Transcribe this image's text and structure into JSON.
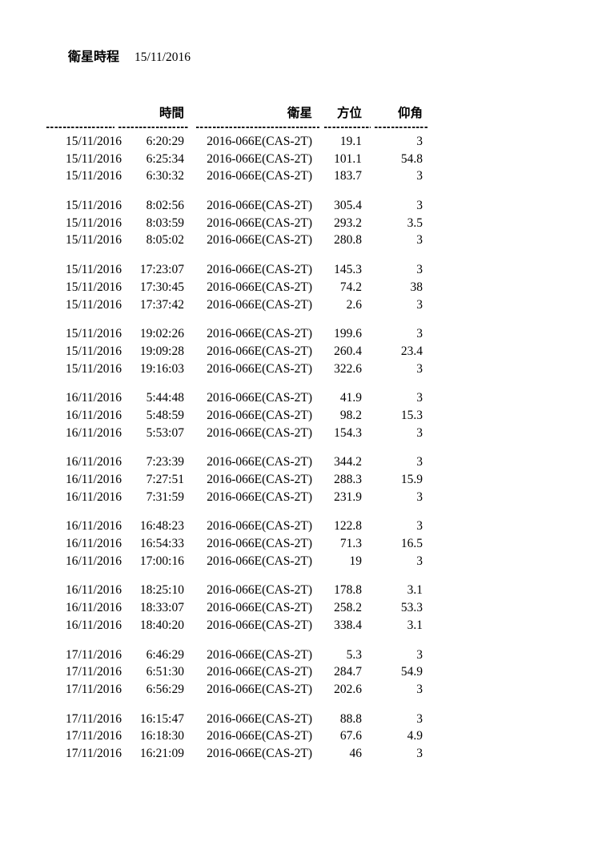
{
  "page": {
    "title": "衛星時程",
    "title_date": "15/11/2016"
  },
  "table": {
    "columns": {
      "date": "",
      "time": "時間",
      "satellite": "衛星",
      "azimuth": "方位",
      "elevation": "仰角"
    },
    "groups": [
      [
        [
          "15/11/2016",
          "6:20:29",
          "2016-066E(CAS-2T)",
          "19.1",
          "3"
        ],
        [
          "15/11/2016",
          "6:25:34",
          "2016-066E(CAS-2T)",
          "101.1",
          "54.8"
        ],
        [
          "15/11/2016",
          "6:30:32",
          "2016-066E(CAS-2T)",
          "183.7",
          "3"
        ]
      ],
      [
        [
          "15/11/2016",
          "8:02:56",
          "2016-066E(CAS-2T)",
          "305.4",
          "3"
        ],
        [
          "15/11/2016",
          "8:03:59",
          "2016-066E(CAS-2T)",
          "293.2",
          "3.5"
        ],
        [
          "15/11/2016",
          "8:05:02",
          "2016-066E(CAS-2T)",
          "280.8",
          "3"
        ]
      ],
      [
        [
          "15/11/2016",
          "17:23:07",
          "2016-066E(CAS-2T)",
          "145.3",
          "3"
        ],
        [
          "15/11/2016",
          "17:30:45",
          "2016-066E(CAS-2T)",
          "74.2",
          "38"
        ],
        [
          "15/11/2016",
          "17:37:42",
          "2016-066E(CAS-2T)",
          "2.6",
          "3"
        ]
      ],
      [
        [
          "15/11/2016",
          "19:02:26",
          "2016-066E(CAS-2T)",
          "199.6",
          "3"
        ],
        [
          "15/11/2016",
          "19:09:28",
          "2016-066E(CAS-2T)",
          "260.4",
          "23.4"
        ],
        [
          "15/11/2016",
          "19:16:03",
          "2016-066E(CAS-2T)",
          "322.6",
          "3"
        ]
      ],
      [
        [
          "16/11/2016",
          "5:44:48",
          "2016-066E(CAS-2T)",
          "41.9",
          "3"
        ],
        [
          "16/11/2016",
          "5:48:59",
          "2016-066E(CAS-2T)",
          "98.2",
          "15.3"
        ],
        [
          "16/11/2016",
          "5:53:07",
          "2016-066E(CAS-2T)",
          "154.3",
          "3"
        ]
      ],
      [
        [
          "16/11/2016",
          "7:23:39",
          "2016-066E(CAS-2T)",
          "344.2",
          "3"
        ],
        [
          "16/11/2016",
          "7:27:51",
          "2016-066E(CAS-2T)",
          "288.3",
          "15.9"
        ],
        [
          "16/11/2016",
          "7:31:59",
          "2016-066E(CAS-2T)",
          "231.9",
          "3"
        ]
      ],
      [
        [
          "16/11/2016",
          "16:48:23",
          "2016-066E(CAS-2T)",
          "122.8",
          "3"
        ],
        [
          "16/11/2016",
          "16:54:33",
          "2016-066E(CAS-2T)",
          "71.3",
          "16.5"
        ],
        [
          "16/11/2016",
          "17:00:16",
          "2016-066E(CAS-2T)",
          "19",
          "3"
        ]
      ],
      [
        [
          "16/11/2016",
          "18:25:10",
          "2016-066E(CAS-2T)",
          "178.8",
          "3.1"
        ],
        [
          "16/11/2016",
          "18:33:07",
          "2016-066E(CAS-2T)",
          "258.2",
          "53.3"
        ],
        [
          "16/11/2016",
          "18:40:20",
          "2016-066E(CAS-2T)",
          "338.4",
          "3.1"
        ]
      ],
      [
        [
          "17/11/2016",
          "6:46:29",
          "2016-066E(CAS-2T)",
          "5.3",
          "3"
        ],
        [
          "17/11/2016",
          "6:51:30",
          "2016-066E(CAS-2T)",
          "284.7",
          "54.9"
        ],
        [
          "17/11/2016",
          "6:56:29",
          "2016-066E(CAS-2T)",
          "202.6",
          "3"
        ]
      ],
      [
        [
          "17/11/2016",
          "16:15:47",
          "2016-066E(CAS-2T)",
          "88.8",
          "3"
        ],
        [
          "17/11/2016",
          "16:18:30",
          "2016-066E(CAS-2T)",
          "67.6",
          "4.9"
        ],
        [
          "17/11/2016",
          "16:21:09",
          "2016-066E(CAS-2T)",
          "46",
          "3"
        ]
      ]
    ]
  }
}
